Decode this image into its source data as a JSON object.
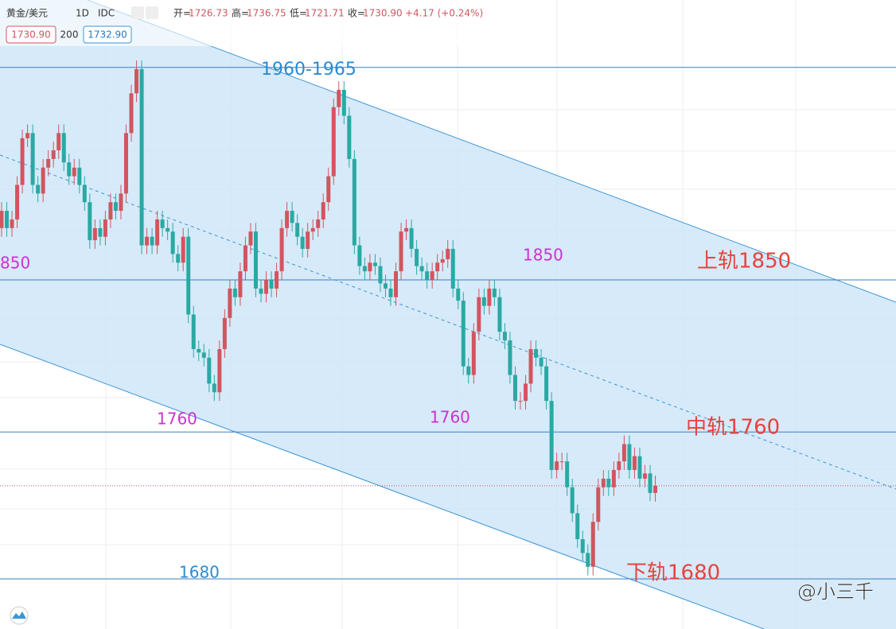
{
  "header": {
    "symbol": "黄金/美元",
    "interval": "1D",
    "source": "IDC",
    "ohlc": [
      {
        "label": "开",
        "value": "1726.73"
      },
      {
        "label": "高",
        "value": "1736.75"
      },
      {
        "label": "低",
        "value": "1721.71"
      },
      {
        "label": "收",
        "value": "1730.90"
      }
    ],
    "change": "+4.17 (+0.24%)",
    "bid": "1730.90",
    "spread": "200",
    "ask": "1732.90"
  },
  "chart_data": {
    "type": "candlestick",
    "ylim": [
      1648,
      2012
    ],
    "up_color": "#d2555f",
    "down_color": "#2aa9a3",
    "open": [
      1880,
      1890,
      1880,
      1885,
      1905,
      1932,
      1935,
      1905,
      1900,
      1915,
      1920,
      1925,
      1935,
      1918,
      1910,
      1915,
      1905,
      1895,
      1873,
      1880,
      1875,
      1885,
      1895,
      1890,
      1900,
      1935,
      1958,
      1972,
      1870,
      1875,
      1870,
      1885,
      1880,
      1878,
      1865,
      1860,
      1875,
      1830,
      1810,
      1808,
      1805,
      1790,
      1785,
      1810,
      1828,
      1845,
      1840,
      1855,
      1870,
      1878,
      1845,
      1842,
      1850,
      1845,
      1855,
      1880,
      1890,
      1883,
      1875,
      1868,
      1878,
      1880,
      1885,
      1895,
      1910,
      1950,
      1960,
      1945,
      1920,
      1870,
      1858,
      1855,
      1860,
      1858,
      1848,
      1845,
      1840,
      1855,
      1878,
      1880,
      1868,
      1858,
      1855,
      1850,
      1855,
      1860,
      1862,
      1868,
      1845,
      1838,
      1800,
      1795,
      1820,
      1840,
      1835,
      1845,
      1840,
      1820,
      1815,
      1795,
      1780,
      1780,
      1790,
      1810,
      1805,
      1800,
      1780,
      1740,
      1745,
      1745,
      1730,
      1715,
      1700,
      1692,
      1684,
      1710,
      1730,
      1735,
      1730,
      1740,
      1745,
      1755,
      1740,
      1748,
      1735,
      1738,
      1726.73
    ],
    "high": [
      1895,
      1895,
      1890,
      1910,
      1937,
      1940,
      1940,
      1910,
      1920,
      1925,
      1930,
      1940,
      1940,
      1923,
      1920,
      1920,
      1910,
      1900,
      1885,
      1885,
      1890,
      1900,
      1900,
      1905,
      1940,
      1963,
      1977,
      1977,
      1880,
      1880,
      1890,
      1890,
      1885,
      1883,
      1870,
      1880,
      1880,
      1835,
      1815,
      1813,
      1810,
      1795,
      1815,
      1833,
      1850,
      1850,
      1860,
      1875,
      1883,
      1883,
      1850,
      1855,
      1855,
      1860,
      1885,
      1895,
      1895,
      1888,
      1880,
      1883,
      1885,
      1890,
      1900,
      1915,
      1955,
      1965,
      1965,
      1950,
      1925,
      1875,
      1863,
      1865,
      1865,
      1863,
      1853,
      1850,
      1860,
      1883,
      1885,
      1885,
      1873,
      1863,
      1860,
      1860,
      1865,
      1867,
      1873,
      1873,
      1850,
      1843,
      1805,
      1825,
      1845,
      1845,
      1850,
      1850,
      1845,
      1825,
      1820,
      1800,
      1785,
      1795,
      1815,
      1815,
      1810,
      1805,
      1785,
      1750,
      1750,
      1750,
      1735,
      1720,
      1705,
      1697,
      1715,
      1735,
      1740,
      1740,
      1745,
      1750,
      1760,
      1760,
      1753,
      1753,
      1743,
      1743,
      1736.75
    ],
    "low": [
      1875,
      1875,
      1875,
      1880,
      1900,
      1927,
      1900,
      1895,
      1895,
      1910,
      1915,
      1920,
      1913,
      1905,
      1905,
      1900,
      1890,
      1868,
      1868,
      1870,
      1870,
      1880,
      1885,
      1885,
      1895,
      1930,
      1953,
      1865,
      1865,
      1865,
      1865,
      1875,
      1873,
      1860,
      1855,
      1855,
      1825,
      1805,
      1803,
      1800,
      1785,
      1780,
      1780,
      1805,
      1823,
      1835,
      1835,
      1850,
      1865,
      1840,
      1837,
      1837,
      1840,
      1840,
      1850,
      1875,
      1878,
      1870,
      1863,
      1863,
      1873,
      1875,
      1880,
      1890,
      1905,
      1945,
      1940,
      1915,
      1865,
      1853,
      1850,
      1850,
      1853,
      1843,
      1840,
      1835,
      1835,
      1850,
      1873,
      1863,
      1853,
      1850,
      1845,
      1845,
      1850,
      1855,
      1857,
      1840,
      1833,
      1795,
      1790,
      1790,
      1815,
      1830,
      1830,
      1835,
      1815,
      1810,
      1790,
      1775,
      1775,
      1775,
      1785,
      1800,
      1795,
      1775,
      1735,
      1735,
      1740,
      1725,
      1710,
      1695,
      1687,
      1679,
      1679,
      1705,
      1725,
      1725,
      1725,
      1735,
      1740,
      1735,
      1735,
      1730,
      1730,
      1722,
      1721.71
    ],
    "close": [
      1890,
      1880,
      1885,
      1905,
      1932,
      1935,
      1905,
      1900,
      1915,
      1920,
      1925,
      1935,
      1918,
      1910,
      1915,
      1905,
      1895,
      1873,
      1880,
      1875,
      1885,
      1895,
      1890,
      1900,
      1935,
      1958,
      1972,
      1870,
      1875,
      1870,
      1885,
      1880,
      1878,
      1865,
      1860,
      1875,
      1830,
      1810,
      1808,
      1805,
      1790,
      1785,
      1810,
      1828,
      1845,
      1840,
      1855,
      1870,
      1878,
      1845,
      1842,
      1850,
      1845,
      1855,
      1880,
      1890,
      1883,
      1875,
      1868,
      1878,
      1880,
      1885,
      1895,
      1910,
      1950,
      1960,
      1945,
      1920,
      1870,
      1858,
      1855,
      1860,
      1858,
      1848,
      1845,
      1840,
      1855,
      1878,
      1880,
      1868,
      1858,
      1855,
      1850,
      1855,
      1860,
      1862,
      1868,
      1845,
      1838,
      1800,
      1795,
      1820,
      1840,
      1835,
      1845,
      1840,
      1820,
      1815,
      1795,
      1780,
      1780,
      1790,
      1810,
      1805,
      1800,
      1780,
      1740,
      1745,
      1745,
      1730,
      1715,
      1700,
      1692,
      1684,
      1710,
      1730,
      1735,
      1730,
      1740,
      1745,
      1755,
      1740,
      1748,
      1735,
      1738,
      1726.73,
      1730.9
    ],
    "hlines": [
      1973,
      1850,
      1762,
      1677
    ],
    "annotations": [
      "1960-1965",
      "850",
      "1850",
      "上轨1850",
      "1760",
      "1760",
      "中轨1760",
      "1680",
      "下轨1680"
    ],
    "watermark": "@小三千"
  }
}
